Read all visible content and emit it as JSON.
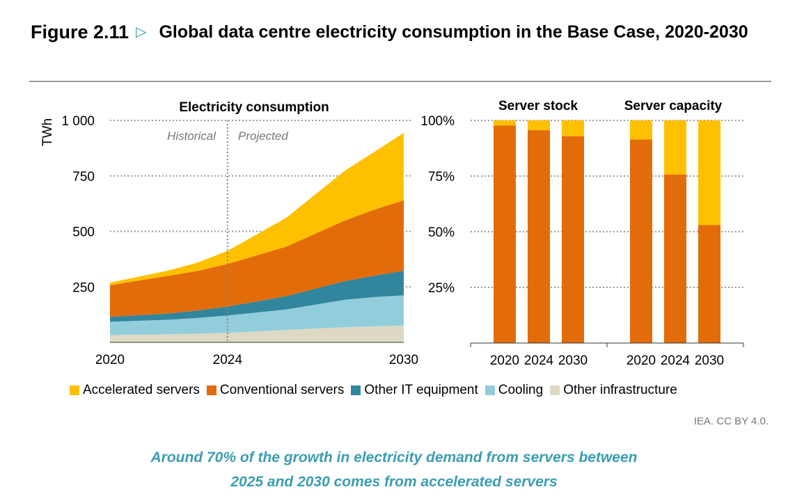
{
  "figure": {
    "label": "Figure 2.11",
    "icon": "triangle-right-icon",
    "title": "Global data centre electricity consumption in the Base Case, 2020-2030"
  },
  "source": "IEA. CC BY 4.0.",
  "caption": "Around 70% of the growth in electricity demand from servers between 2025 and 2030 comes from accelerated servers",
  "legend": [
    {
      "label": "Accelerated servers",
      "color": "#FFC000"
    },
    {
      "label": "Conventional servers",
      "color": "#E36C0A"
    },
    {
      "label": "Other IT equipment",
      "color": "#31859C"
    },
    {
      "label": "Cooling",
      "color": "#92CDDC"
    },
    {
      "label": "Other infrastructure",
      "color": "#DDD9C4"
    }
  ],
  "chart_data": [
    {
      "type": "area",
      "stacked": true,
      "title": "Electricity consumption",
      "ylabel": "TWh",
      "xlabel": "",
      "ylim": [
        0,
        1000
      ],
      "yticks": [
        250,
        500,
        750,
        1000
      ],
      "ytick_labels": [
        "250",
        "500",
        "750",
        "1 000"
      ],
      "xticks": [
        "2020",
        "2024",
        "2030"
      ],
      "grid": true,
      "annotations": [
        "Historical",
        "Projected"
      ],
      "divider_x": 2024,
      "x": [
        2020,
        2022,
        2023,
        2024,
        2026,
        2028,
        2029,
        2030
      ],
      "series": [
        {
          "name": "Other infrastructure",
          "color": "#DDD9C4",
          "values": [
            33,
            37,
            39,
            43,
            56,
            68,
            72,
            76
          ]
        },
        {
          "name": "Cooling",
          "color": "#92CDDC",
          "values": [
            60,
            65,
            71,
            78,
            92,
            124,
            132,
            136
          ]
        },
        {
          "name": "Other IT equipment",
          "color": "#31859C",
          "values": [
            22,
            28,
            34,
            40,
            60,
            84,
            96,
            111
          ]
        },
        {
          "name": "Conventional servers",
          "color": "#E36C0A",
          "values": [
            142,
            170,
            178,
            192,
            223,
            273,
            298,
            317
          ]
        },
        {
          "name": "Accelerated servers",
          "color": "#FFC000",
          "values": [
            12,
            24,
            38,
            59,
            130,
            225,
            260,
            304
          ]
        }
      ]
    },
    {
      "type": "bar",
      "stacked": true,
      "title": "Server stock",
      "categories": [
        "2020",
        "2024",
        "2030"
      ],
      "ylim": [
        0,
        100
      ],
      "yticks": [
        "25%",
        "50%",
        "75%",
        "100%"
      ],
      "series": [
        {
          "name": "Conventional servers",
          "color": "#E36C0A",
          "values": [
            97.7,
            95.6,
            92.9
          ]
        },
        {
          "name": "Accelerated servers",
          "color": "#FFC000",
          "values": [
            2.3,
            4.4,
            7.1
          ]
        }
      ]
    },
    {
      "type": "bar",
      "stacked": true,
      "title": "Server capacity",
      "categories": [
        "2020",
        "2024",
        "2030"
      ],
      "ylim": [
        0,
        100
      ],
      "series": [
        {
          "name": "Conventional servers",
          "color": "#E36C0A",
          "values": [
            91.4,
            75.7,
            53.0
          ]
        },
        {
          "name": "Accelerated servers",
          "color": "#FFC000",
          "values": [
            8.6,
            24.3,
            47.0
          ]
        }
      ]
    }
  ]
}
